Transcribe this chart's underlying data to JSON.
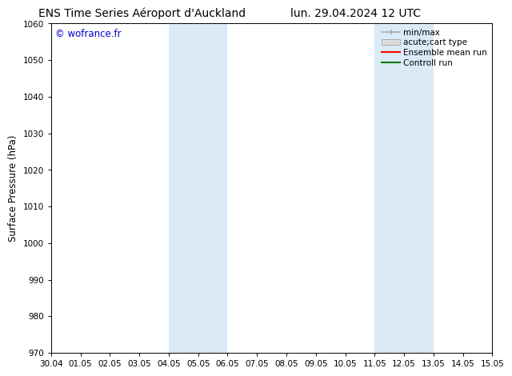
{
  "title_left": "ENS Time Series Aéroport d'Auckland",
  "title_right": "lun. 29.04.2024 12 UTC",
  "ylabel": "Surface Pressure (hPa)",
  "watermark": "© wofrance.fr",
  "watermark_color": "#0000cc",
  "ylim": [
    970,
    1060
  ],
  "yticks": [
    970,
    980,
    990,
    1000,
    1010,
    1020,
    1030,
    1040,
    1050,
    1060
  ],
  "xtick_labels": [
    "30.04",
    "01.05",
    "02.05",
    "03.05",
    "04.05",
    "05.05",
    "06.05",
    "07.05",
    "08.05",
    "09.05",
    "10.05",
    "11.05",
    "12.05",
    "13.05",
    "14.05",
    "15.05"
  ],
  "xtick_positions": [
    0,
    1,
    2,
    3,
    4,
    5,
    6,
    7,
    8,
    9,
    10,
    11,
    12,
    13,
    14,
    15
  ],
  "shaded_regions": [
    {
      "xmin": 4.0,
      "xmax": 6.0
    },
    {
      "xmin": 11.0,
      "xmax": 13.0
    }
  ],
  "shaded_color": "#daeaf7",
  "background_color": "#ffffff",
  "legend_labels": [
    "min/max",
    "acute;cart type",
    "Ensemble mean run",
    "Controll run"
  ],
  "legend_colors": [
    "#aaaaaa",
    "#cccccc",
    "#ff0000",
    "#007700"
  ],
  "title_fontsize": 10,
  "tick_fontsize": 7.5,
  "ylabel_fontsize": 8.5,
  "watermark_fontsize": 8.5,
  "legend_fontsize": 7.5
}
